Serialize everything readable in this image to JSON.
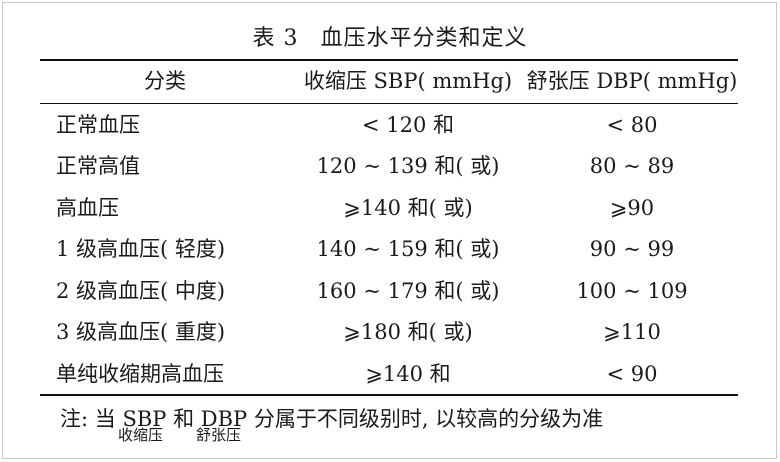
{
  "table": {
    "title_number": "表 3",
    "title_text": "血压水平分类和定义",
    "headers": [
      "分类",
      "收缩压 SBP( mmHg)",
      "舒张压 DBP( mmHg)"
    ],
    "rows": [
      {
        "category": "正常血压",
        "sbp": "< 120 和",
        "dbp": "< 80"
      },
      {
        "category": "正常高值",
        "sbp": "120 ~ 139 和( 或)",
        "dbp": "80 ~ 89"
      },
      {
        "category": "高血压",
        "sbp": "⩾140 和( 或)",
        "dbp": "⩾90"
      },
      {
        "category": "1 级高血压( 轻度)",
        "sbp": "140 ~ 159 和( 或)",
        "dbp": "90 ~ 99"
      },
      {
        "category": "2 级高血压( 中度)",
        "sbp": "160 ~ 179 和( 或)",
        "dbp": "100 ~ 109"
      },
      {
        "category": "3 级高血压( 重度)",
        "sbp": "⩾180 和( 或)",
        "dbp": "⩾110"
      },
      {
        "category": "单纯收缩期高血压",
        "sbp": "⩾140 和",
        "dbp": "< 90"
      }
    ]
  },
  "note": {
    "prefix": "注: 当 ",
    "sbp": "SBP",
    "mid": " 和 ",
    "dbp": "DBP",
    "suffix": " 分属于不同级别时, 以较高的分级为准",
    "sbp_sub": "收缩压",
    "dbp_sub": "舒张压"
  }
}
